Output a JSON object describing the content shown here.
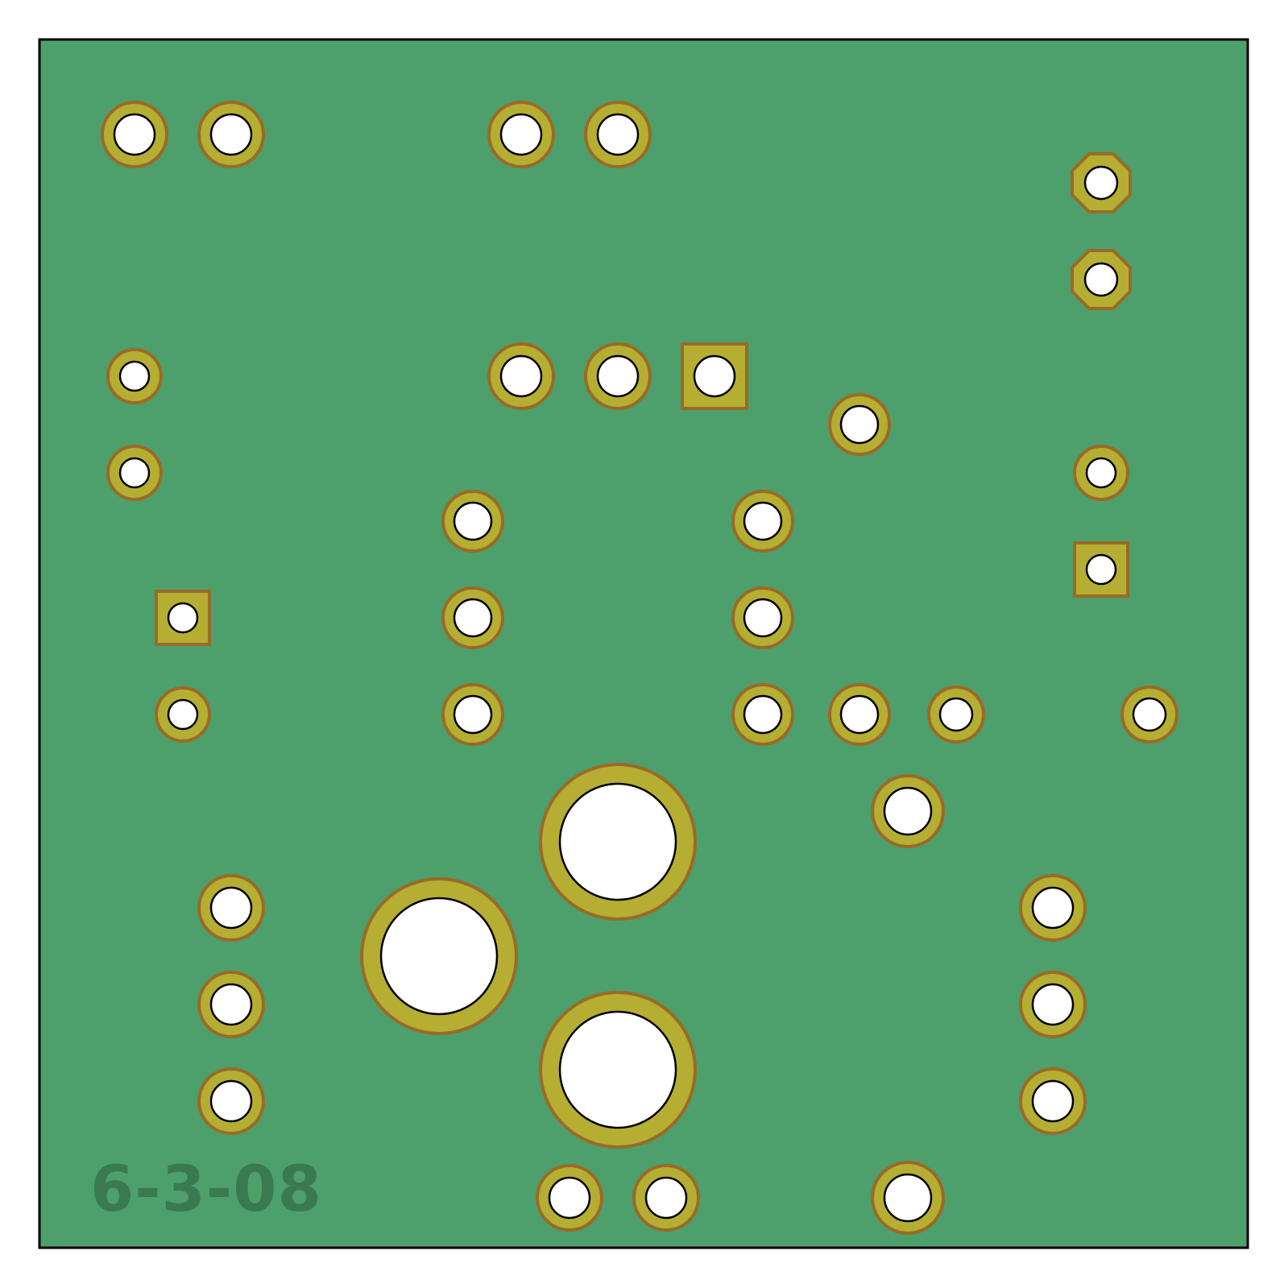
{
  "board": {
    "silkscreen_text": "6-3-08",
    "colors": {
      "substrate": "#4da06c",
      "substrate_outline": "#000000",
      "copper": "#b5ae32",
      "copper_edge": "#9a6a26",
      "drill": "#ffffff",
      "drill_outline": "#000000",
      "silkscreen": "#3a7a50"
    },
    "pad_shapes": {
      "round": "circle",
      "square": "square",
      "octagon": "octagon"
    }
  }
}
